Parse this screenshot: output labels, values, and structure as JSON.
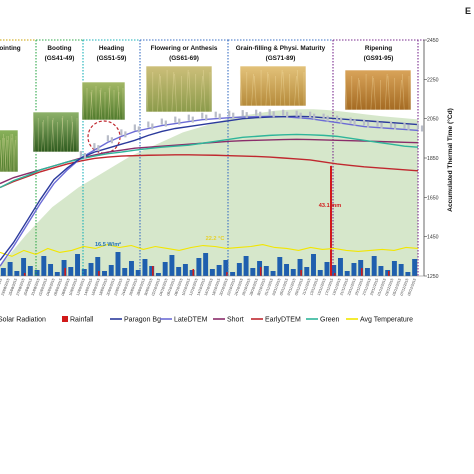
{
  "chart_data": {
    "type": "line",
    "right_axis": {
      "label": "Accumulated Thermal Time (°Cd)",
      "ticks": [
        1250,
        1450,
        1650,
        1850,
        2050,
        2250,
        2450
      ],
      "ylim": [
        1250,
        2450
      ]
    },
    "stages": [
      {
        "label": "Jointing",
        "line1": "ointing",
        "line2": "",
        "color": "#c9a100"
      },
      {
        "label": "Booting (GS41-49)",
        "line1": "Booting",
        "line2": "(GS41-49)",
        "color": "#2fa84a"
      },
      {
        "label": "Heading (GS51-59)",
        "line1": "Heading",
        "line2": "(GS51-59)",
        "color": "#1ab1b8"
      },
      {
        "label": "Flowering or Anthesis (GS61-69)",
        "line1": "Flowering or Anthesis",
        "line2": "(GS61-69)",
        "color": "#3a6fc4"
      },
      {
        "label": "Grain-filling & Physi. Maturity (GS71-89)",
        "line1": "Grain-filling & Physi. Maturity",
        "line2": "(GS71-89)",
        "color": "#3a6fc4"
      },
      {
        "label": "Ripening (GS91-95)",
        "line1": "Ripening",
        "line2": "(GS91-95)",
        "color": "#7a2c8f"
      }
    ],
    "annotations": [
      {
        "text": "16.5 W/m²",
        "color": "#1f6fb5"
      },
      {
        "text": "22.2 °C",
        "color": "#e6d12a"
      },
      {
        "text": "43.1 mm",
        "color": "#d11a1a"
      }
    ],
    "series": [
      {
        "name": "Solar Radiation",
        "color": "#cfe3c2",
        "kind": "area"
      },
      {
        "name": "Rainfall",
        "color": "#d11a1a",
        "kind": "bar"
      },
      {
        "name": "Paragon Bg",
        "color": "#2b3a9c",
        "kind": "line"
      },
      {
        "name": "LateDTEM",
        "color": "#6c6cd6",
        "kind": "line"
      },
      {
        "name": "Short",
        "color": "#8a2d6a",
        "kind": "line"
      },
      {
        "name": "EarlyDTEM",
        "color": "#c0282f",
        "kind": "line"
      },
      {
        "name": "Green",
        "color": "#2fb59a",
        "kind": "line"
      },
      {
        "name": "Avg Temperature",
        "color": "#f2e600",
        "kind": "line"
      }
    ],
    "dates": [
      "21/08",
      "23/08",
      "25/08",
      "27/08",
      "29/08",
      "31/08",
      "02/09",
      "04/09",
      "06/09",
      "08/09",
      "10/09",
      "12/09",
      "14/09",
      "16/09",
      "18/09",
      "20/09",
      "22/09",
      "24/09",
      "26/09",
      "28/09",
      "30/09",
      "02/10",
      "04/10",
      "06/10",
      "08/10",
      "10/10",
      "12/10",
      "14/10",
      "16/10",
      "18/10",
      "20/10",
      "22/10",
      "24/10",
      "26/10",
      "28/10",
      "30/10",
      "01/11",
      "03/11",
      "05/11",
      "07/11",
      "09/11",
      "11/11",
      "13/11",
      "15/11",
      "17/11",
      "19/11",
      "21/11",
      "23/11",
      "25/11",
      "27/11",
      "29/11",
      "01/12",
      "03/12",
      "05/12",
      "07/12",
      "09/12"
    ],
    "date_suffix": "/2015",
    "thermal": {
      "Paragon Bg": [
        1330,
        1420,
        1530,
        1640,
        1740,
        1800,
        1850,
        1880,
        1900,
        1920,
        1940,
        1965,
        1985,
        2000,
        2010,
        2020,
        2030,
        2040,
        2050,
        2055,
        2058,
        2060,
        2062,
        2060,
        2055,
        2050,
        2045,
        2040,
        2035,
        2030,
        2025,
        2020
      ],
      "LateDTEM": [
        1300,
        1400,
        1510,
        1620,
        1720,
        1790,
        1850,
        1890,
        1930,
        1960,
        1985,
        2000,
        2015,
        2025,
        2035,
        2045,
        2050,
        2055,
        2058,
        2060,
        2062,
        2060,
        2055,
        2050,
        2040,
        2030,
        2020,
        2010,
        2005,
        2000,
        1995,
        1990
      ],
      "Short": [
        1720,
        1750,
        1770,
        1790,
        1810,
        1830,
        1850,
        1865,
        1880,
        1890,
        1900,
        1905,
        1910,
        1915,
        1920,
        1925,
        1930,
        1935,
        1938,
        1940,
        1942,
        1944,
        1945,
        1944,
        1942,
        1940,
        1938,
        1936,
        1934,
        1932,
        1930,
        1928
      ],
      "EarlyDTEM": [
        1700,
        1730,
        1755,
        1780,
        1800,
        1820,
        1835,
        1848,
        1855,
        1860,
        1862,
        1864,
        1865,
        1866,
        1866,
        1865,
        1864,
        1862,
        1860,
        1858,
        1855,
        1850,
        1845,
        1840,
        1830,
        1820,
        1812,
        1805,
        1800,
        1795,
        1790,
        1785
      ],
      "Green": [
        1700,
        1735,
        1760,
        1790,
        1810,
        1830,
        1845,
        1860,
        1872,
        1880,
        1890,
        1898,
        1905,
        1910,
        1915,
        1925,
        1935,
        1945,
        1955,
        1960,
        1965,
        1968,
        1970,
        1968,
        1965,
        1960,
        1950,
        1940,
        1930,
        1920,
        1910,
        1905
      ]
    },
    "solar_area": [
      1300,
      1380,
      1460,
      1530,
      1600,
      1650,
      1700,
      1740,
      1780,
      1820,
      1860,
      1890,
      1920,
      1950,
      1980,
      2000,
      2020,
      2040,
      2060,
      2070,
      2080,
      2090,
      2095,
      2098,
      2098,
      2094,
      2088,
      2080,
      2072,
      2064,
      2058,
      2052,
      2046
    ],
    "avg_temperature": [
      1370,
      1350,
      1380,
      1360,
      1390,
      1370,
      1380,
      1400,
      1390,
      1410,
      1395,
      1405,
      1385,
      1400,
      1390,
      1380,
      1395,
      1405,
      1400,
      1390,
      1395,
      1400,
      1410,
      1395,
      1390,
      1380,
      1395,
      1385,
      1390,
      1380,
      1375,
      1380,
      1385,
      1380,
      1395,
      1390
    ],
    "rainfall_peak": 43.1
  }
}
